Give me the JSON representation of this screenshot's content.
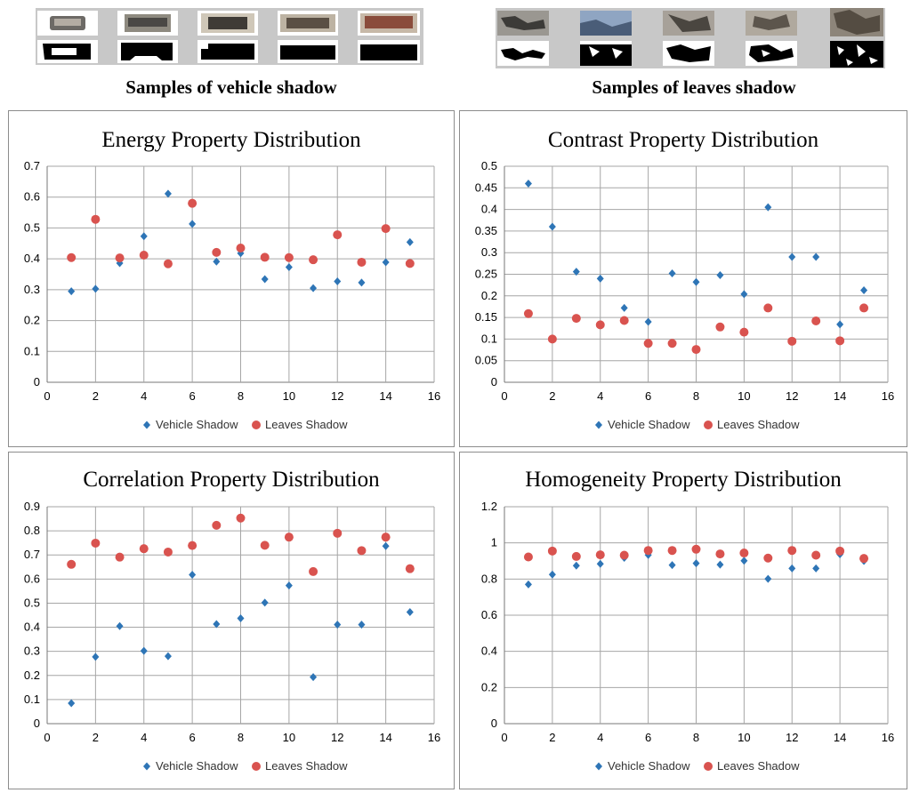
{
  "samples": {
    "vehicle_heading": "Samples of vehicle shadow",
    "leaves_heading": "Samples of leaves shadow"
  },
  "legend": {
    "vehicle": "Vehicle Shadow",
    "leaves": "Leaves Shadow"
  },
  "colors": {
    "vehicle": "#2e75b6",
    "leaves": "#d9534f"
  },
  "chart_data": [
    {
      "type": "scatter",
      "title": "Energy Property Distribution",
      "xlabel": "",
      "ylabel": "",
      "xlim": [
        0,
        16
      ],
      "xticks": [
        0,
        2,
        4,
        6,
        8,
        10,
        12,
        14,
        16
      ],
      "ylim": [
        0,
        0.7
      ],
      "yticks": [
        0,
        0.1,
        0.2,
        0.3,
        0.4,
        0.5,
        0.6,
        0.7
      ],
      "x": [
        1,
        2,
        3,
        4,
        5,
        6,
        7,
        8,
        9,
        10,
        11,
        12,
        13,
        14,
        15
      ],
      "series": [
        {
          "name": "Vehicle Shadow",
          "marker": "diamond",
          "values": [
            0.295,
            0.303,
            0.386,
            0.473,
            0.611,
            0.513,
            0.391,
            0.418,
            0.334,
            0.373,
            0.305,
            0.327,
            0.323,
            0.389,
            0.454
          ]
        },
        {
          "name": "Leaves Shadow",
          "marker": "circle",
          "values": [
            0.404,
            0.528,
            0.403,
            0.412,
            0.384,
            0.58,
            0.421,
            0.435,
            0.405,
            0.404,
            0.397,
            0.478,
            0.389,
            0.498,
            0.385
          ]
        }
      ]
    },
    {
      "type": "scatter",
      "title": "Contrast Property Distribution",
      "xlabel": "",
      "ylabel": "",
      "xlim": [
        0,
        16
      ],
      "xticks": [
        0,
        2,
        4,
        6,
        8,
        10,
        12,
        14,
        16
      ],
      "ylim": [
        0,
        0.5
      ],
      "yticks": [
        0,
        0.05,
        0.1,
        0.15,
        0.2,
        0.25,
        0.3,
        0.35,
        0.4,
        0.45,
        0.5
      ],
      "x": [
        1,
        2,
        3,
        4,
        5,
        6,
        7,
        8,
        9,
        10,
        11,
        12,
        13,
        14,
        15
      ],
      "series": [
        {
          "name": "Vehicle Shadow",
          "marker": "diamond",
          "values": [
            0.46,
            0.36,
            0.256,
            0.24,
            0.172,
            0.14,
            0.252,
            0.232,
            0.248,
            0.204,
            0.405,
            0.29,
            0.29,
            0.134,
            0.213
          ]
        },
        {
          "name": "Leaves Shadow",
          "marker": "circle",
          "values": [
            0.159,
            0.1,
            0.148,
            0.133,
            0.143,
            0.09,
            0.09,
            0.076,
            0.128,
            0.116,
            0.172,
            0.095,
            0.142,
            0.096,
            0.172
          ]
        }
      ]
    },
    {
      "type": "scatter",
      "title": "Correlation Property Distribution",
      "xlabel": "",
      "ylabel": "",
      "xlim": [
        0,
        16
      ],
      "xticks": [
        0,
        2,
        4,
        6,
        8,
        10,
        12,
        14,
        16
      ],
      "ylim": [
        0,
        0.9
      ],
      "yticks": [
        0,
        0.1,
        0.2,
        0.3,
        0.4,
        0.5,
        0.6,
        0.7,
        0.8,
        0.9
      ],
      "x": [
        1,
        2,
        3,
        4,
        5,
        6,
        7,
        8,
        9,
        10,
        11,
        12,
        13,
        14,
        15
      ],
      "series": [
        {
          "name": "Vehicle Shadow",
          "marker": "diamond",
          "values": [
            0.085,
            0.277,
            0.405,
            0.302,
            0.28,
            0.618,
            0.413,
            0.437,
            0.502,
            0.573,
            0.193,
            0.411,
            0.411,
            0.737,
            0.463
          ]
        },
        {
          "name": "Leaves Shadow",
          "marker": "circle",
          "values": [
            0.661,
            0.749,
            0.691,
            0.726,
            0.712,
            0.739,
            0.823,
            0.853,
            0.74,
            0.774,
            0.631,
            0.79,
            0.718,
            0.774,
            0.643
          ]
        }
      ]
    },
    {
      "type": "scatter",
      "title": "Homogeneity Property Distribution",
      "xlabel": "",
      "ylabel": "",
      "xlim": [
        0,
        16
      ],
      "xticks": [
        0,
        2,
        4,
        6,
        8,
        10,
        12,
        14,
        16
      ],
      "ylim": [
        0,
        1.2
      ],
      "yticks": [
        0,
        0.2,
        0.4,
        0.6,
        0.8,
        1,
        1.2
      ],
      "x": [
        1,
        2,
        3,
        4,
        5,
        6,
        7,
        8,
        9,
        10,
        11,
        12,
        13,
        14,
        15
      ],
      "series": [
        {
          "name": "Vehicle Shadow",
          "marker": "diamond",
          "values": [
            0.77,
            0.825,
            0.874,
            0.884,
            0.917,
            0.933,
            0.877,
            0.887,
            0.88,
            0.901,
            0.801,
            0.859,
            0.859,
            0.937,
            0.9
          ]
        },
        {
          "name": "Leaves Shadow",
          "marker": "circle",
          "values": [
            0.922,
            0.955,
            0.925,
            0.934,
            0.932,
            0.958,
            0.958,
            0.965,
            0.939,
            0.944,
            0.916,
            0.958,
            0.932,
            0.955,
            0.914
          ]
        }
      ]
    }
  ]
}
